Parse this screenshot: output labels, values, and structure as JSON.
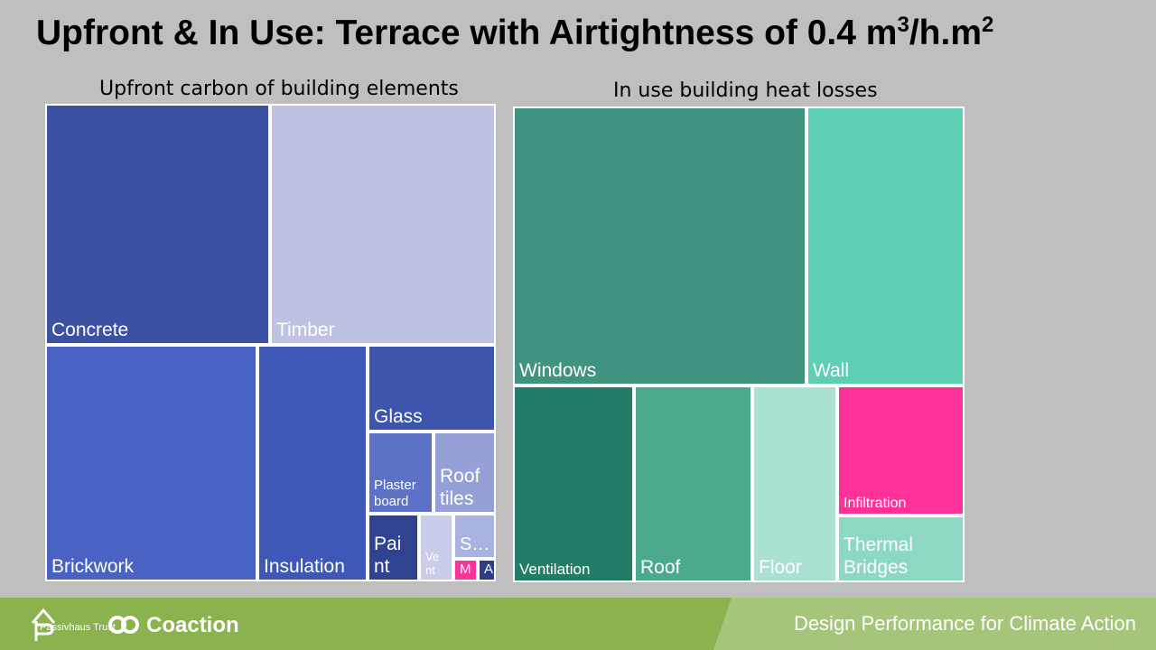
{
  "page": {
    "title_main": "Upfront & In Use: Terrace with Airtightness of 0.4 m",
    "title_sup1": "3",
    "title_mid": "/h.m",
    "title_sup2": "2"
  },
  "chart_data": [
    {
      "type": "treemap",
      "title": "Upfront carbon of building elements",
      "items": [
        {
          "label": "Concrete",
          "color": "#3d51a3"
        },
        {
          "label": "Timber",
          "color": "#bec3e4"
        },
        {
          "label": "Brickwork",
          "color": "#4a62c4"
        },
        {
          "label": "Insulation",
          "color": "#3f58b7"
        },
        {
          "label": "Glass",
          "color": "#3d55ac"
        },
        {
          "label": "Plaster board",
          "color": "#5d72c6"
        },
        {
          "label": "Roof tiles",
          "color": "#94a0d6"
        },
        {
          "label": "Pai nt",
          "color": "#2f4390"
        },
        {
          "label": "Ve nt",
          "color": "#c9cdea"
        },
        {
          "label": "S…",
          "color": "#a8b3df"
        },
        {
          "label": "M",
          "color": "#ff3299"
        },
        {
          "label": "A",
          "color": "#2b3d8a"
        }
      ]
    },
    {
      "type": "treemap",
      "title": "In use building heat losses",
      "items": [
        {
          "label": "Windows",
          "color": "#40947f"
        },
        {
          "label": "Wall",
          "color": "#5dcfb3"
        },
        {
          "label": "Ventilation",
          "color": "#237c65"
        },
        {
          "label": "Roof",
          "color": "#4aa98f"
        },
        {
          "label": "Floor",
          "color": "#abe1d3"
        },
        {
          "label": "Infiltration",
          "color": "#ff3299"
        },
        {
          "label": "Thermal Bridges",
          "color": "#8dd8c4"
        }
      ]
    }
  ],
  "footer": {
    "tagline": "Design Performance for Climate Action",
    "logo_passivhaus": "Passivhaus Trust",
    "logo_coaction": "Coaction"
  }
}
